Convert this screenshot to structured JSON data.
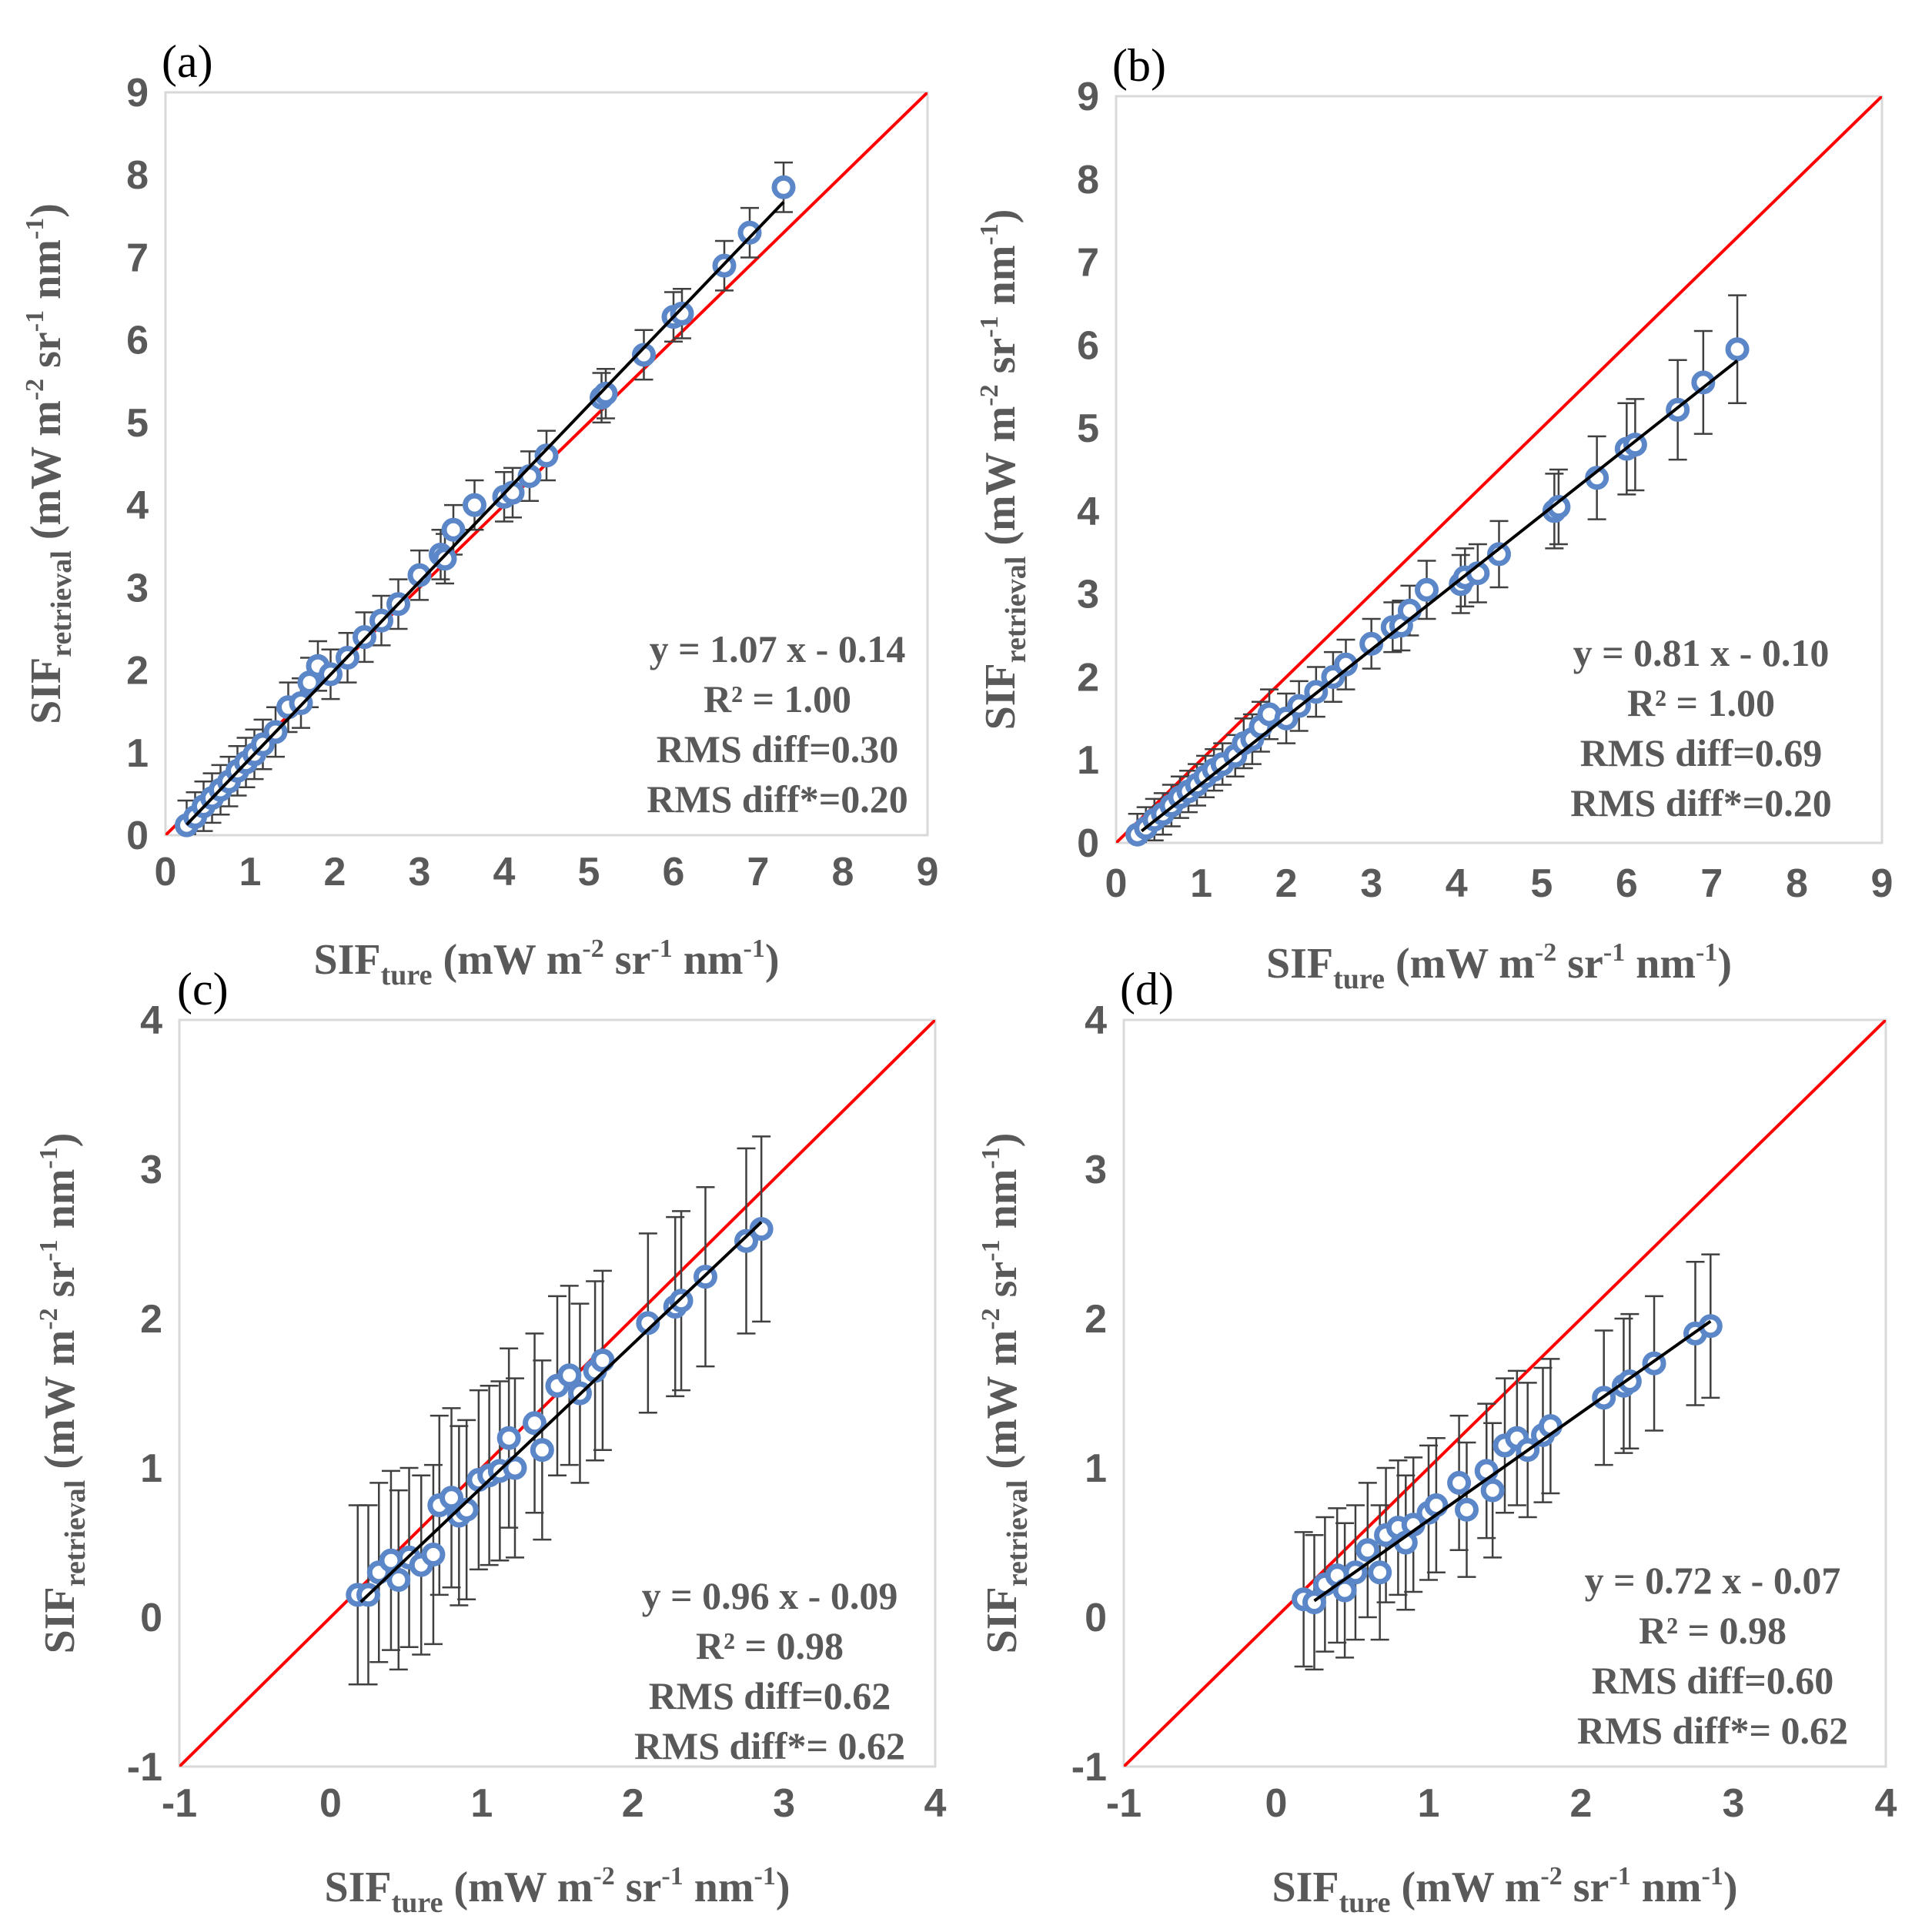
{
  "chart_data": [
    {
      "type": "scatter",
      "panel_label": "(a)",
      "xlim": [
        0,
        9
      ],
      "ylim": [
        0,
        9
      ],
      "xticks": [
        "0",
        "1",
        "2",
        "3",
        "4",
        "5",
        "6",
        "7",
        "8",
        "9"
      ],
      "yticks": [
        "0",
        "1",
        "2",
        "3",
        "4",
        "5",
        "6",
        "7",
        "8",
        "9"
      ],
      "xlabel": {
        "main": "SIF",
        "sub": "ture",
        "units": " (mW m",
        "sup1": "-2",
        "mid1": " sr",
        "sup2": "-1",
        "mid2": " nm",
        "sup3": "-1",
        "end": ")"
      },
      "ylabel": {
        "main": "SIF",
        "sub": "retrieval",
        "units": " (mW m",
        "sup1": "-2",
        "mid1": " sr",
        "sup2": "-1",
        "mid2": " nm",
        "sup3": "-1",
        "end": ")"
      },
      "annotations": [
        "y = 1.07 x - 0.14",
        "R² = 1.00",
        "RMS diff=0.30",
        "RMS diff*=0.20"
      ],
      "fit": {
        "slope": 1.07,
        "intercept": -0.14,
        "x_range": [
          0.25,
          7.3
        ]
      },
      "one_to_one": true,
      "points": [
        {
          "x": 0.25,
          "y": 0.12,
          "err": 0.3
        },
        {
          "x": 0.35,
          "y": 0.22,
          "err": 0.3
        },
        {
          "x": 0.45,
          "y": 0.35,
          "err": 0.3
        },
        {
          "x": 0.55,
          "y": 0.45,
          "err": 0.3
        },
        {
          "x": 0.65,
          "y": 0.55,
          "err": 0.3
        },
        {
          "x": 0.75,
          "y": 0.65,
          "err": 0.3
        },
        {
          "x": 0.85,
          "y": 0.78,
          "err": 0.3
        },
        {
          "x": 0.95,
          "y": 0.88,
          "err": 0.3
        },
        {
          "x": 1.05,
          "y": 0.98,
          "err": 0.3
        },
        {
          "x": 1.15,
          "y": 1.1,
          "err": 0.3
        },
        {
          "x": 1.3,
          "y": 1.25,
          "err": 0.3
        },
        {
          "x": 1.45,
          "y": 1.55,
          "err": 0.3
        },
        {
          "x": 1.6,
          "y": 1.6,
          "err": 0.3
        },
        {
          "x": 1.7,
          "y": 1.85,
          "err": 0.3
        },
        {
          "x": 1.8,
          "y": 2.05,
          "err": 0.3
        },
        {
          "x": 1.95,
          "y": 1.95,
          "err": 0.3
        },
        {
          "x": 2.15,
          "y": 2.15,
          "err": 0.3
        },
        {
          "x": 2.35,
          "y": 2.4,
          "err": 0.3
        },
        {
          "x": 2.55,
          "y": 2.6,
          "err": 0.3
        },
        {
          "x": 2.75,
          "y": 2.8,
          "err": 0.3
        },
        {
          "x": 3.0,
          "y": 3.15,
          "err": 0.3
        },
        {
          "x": 3.25,
          "y": 3.4,
          "err": 0.3
        },
        {
          "x": 3.3,
          "y": 3.35,
          "err": 0.3
        },
        {
          "x": 3.4,
          "y": 3.7,
          "err": 0.3
        },
        {
          "x": 3.65,
          "y": 4.0,
          "err": 0.3
        },
        {
          "x": 4.0,
          "y": 4.1,
          "err": 0.3
        },
        {
          "x": 4.1,
          "y": 4.15,
          "err": 0.3
        },
        {
          "x": 4.3,
          "y": 4.35,
          "err": 0.3
        },
        {
          "x": 4.5,
          "y": 4.6,
          "err": 0.3
        },
        {
          "x": 5.15,
          "y": 5.3,
          "err": 0.3
        },
        {
          "x": 5.2,
          "y": 5.35,
          "err": 0.3
        },
        {
          "x": 5.65,
          "y": 5.82,
          "err": 0.3
        },
        {
          "x": 6.0,
          "y": 6.28,
          "err": 0.3
        },
        {
          "x": 6.1,
          "y": 6.32,
          "err": 0.3
        },
        {
          "x": 6.6,
          "y": 6.9,
          "err": 0.3
        },
        {
          "x": 6.9,
          "y": 7.3,
          "err": 0.3
        },
        {
          "x": 7.3,
          "y": 7.85,
          "err": 0.3
        }
      ]
    },
    {
      "type": "scatter",
      "panel_label": "(b)",
      "xlim": [
        0,
        9
      ],
      "ylim": [
        0,
        9
      ],
      "xticks": [
        "0",
        "1",
        "2",
        "3",
        "4",
        "5",
        "6",
        "7",
        "8",
        "9"
      ],
      "yticks": [
        "0",
        "1",
        "2",
        "3",
        "4",
        "5",
        "6",
        "7",
        "8",
        "9"
      ],
      "xlabel": {
        "main": "SIF",
        "sub": "ture",
        "units": " (mW m",
        "sup1": "-2",
        "mid1": " sr",
        "sup2": "-1",
        "mid2": " nm",
        "sup3": "-1",
        "end": ")"
      },
      "ylabel": {
        "main": "SIF",
        "sub": "retrieval",
        "units": " (mW m",
        "sup1": "-2",
        "mid1": " sr",
        "sup2": "-1",
        "mid2": " nm",
        "sup3": "-1",
        "end": ")"
      },
      "annotations": [
        "y = 0.81 x - 0.10",
        "R² = 1.00",
        "RMS diff=0.69",
        "RMS diff*=0.20"
      ],
      "fit": {
        "slope": 0.81,
        "intercept": -0.1,
        "x_range": [
          0.3,
          7.3
        ]
      },
      "one_to_one": true,
      "points": [
        {
          "x": 0.25,
          "y": 0.1,
          "err": 0.25
        },
        {
          "x": 0.35,
          "y": 0.18,
          "err": 0.25
        },
        {
          "x": 0.45,
          "y": 0.28,
          "err": 0.25
        },
        {
          "x": 0.55,
          "y": 0.35,
          "err": 0.25
        },
        {
          "x": 0.65,
          "y": 0.45,
          "err": 0.25
        },
        {
          "x": 0.75,
          "y": 0.55,
          "err": 0.25
        },
        {
          "x": 0.85,
          "y": 0.62,
          "err": 0.25
        },
        {
          "x": 0.95,
          "y": 0.7,
          "err": 0.25
        },
        {
          "x": 1.05,
          "y": 0.8,
          "err": 0.25
        },
        {
          "x": 1.15,
          "y": 0.88,
          "err": 0.25
        },
        {
          "x": 1.25,
          "y": 0.95,
          "err": 0.25
        },
        {
          "x": 1.4,
          "y": 1.05,
          "err": 0.25
        },
        {
          "x": 1.5,
          "y": 1.2,
          "err": 0.3
        },
        {
          "x": 1.6,
          "y": 1.25,
          "err": 0.3
        },
        {
          "x": 1.7,
          "y": 1.4,
          "err": 0.3
        },
        {
          "x": 1.8,
          "y": 1.55,
          "err": 0.3
        },
        {
          "x": 2.0,
          "y": 1.5,
          "err": 0.3
        },
        {
          "x": 2.15,
          "y": 1.65,
          "err": 0.3
        },
        {
          "x": 2.35,
          "y": 1.82,
          "err": 0.3
        },
        {
          "x": 2.55,
          "y": 2.0,
          "err": 0.3
        },
        {
          "x": 2.7,
          "y": 2.15,
          "err": 0.3
        },
        {
          "x": 3.0,
          "y": 2.4,
          "err": 0.3
        },
        {
          "x": 3.25,
          "y": 2.6,
          "err": 0.3
        },
        {
          "x": 3.35,
          "y": 2.62,
          "err": 0.3
        },
        {
          "x": 3.45,
          "y": 2.8,
          "err": 0.3
        },
        {
          "x": 3.65,
          "y": 3.05,
          "err": 0.35
        },
        {
          "x": 4.05,
          "y": 3.12,
          "err": 0.35
        },
        {
          "x": 4.1,
          "y": 3.2,
          "err": 0.35
        },
        {
          "x": 4.25,
          "y": 3.25,
          "err": 0.35
        },
        {
          "x": 4.5,
          "y": 3.48,
          "err": 0.4
        },
        {
          "x": 5.15,
          "y": 4.0,
          "err": 0.45
        },
        {
          "x": 5.2,
          "y": 4.05,
          "err": 0.45
        },
        {
          "x": 5.65,
          "y": 4.4,
          "err": 0.5
        },
        {
          "x": 6.0,
          "y": 4.75,
          "err": 0.55
        },
        {
          "x": 6.1,
          "y": 4.8,
          "err": 0.55
        },
        {
          "x": 6.6,
          "y": 5.22,
          "err": 0.6
        },
        {
          "x": 6.9,
          "y": 5.55,
          "err": 0.62
        },
        {
          "x": 7.3,
          "y": 5.95,
          "err": 0.65
        }
      ]
    },
    {
      "type": "scatter",
      "panel_label": "(c)",
      "xlim": [
        -1,
        4
      ],
      "ylim": [
        -1,
        4
      ],
      "xticks": [
        "-1",
        "0",
        "1",
        "2",
        "3",
        "4"
      ],
      "yticks": [
        "-1",
        "0",
        "1",
        "2",
        "3",
        "4"
      ],
      "xlabel": {
        "main": "SIF",
        "sub": "ture",
        "units": " (mW m",
        "sup1": "-2",
        "mid1": " sr",
        "sup2": "-1",
        "mid2": " nm",
        "sup3": "-1",
        "end": ")"
      },
      "ylabel": {
        "main": "SIF",
        "sub": "retrieval",
        "units": " (mW m",
        "sup1": "-2",
        "mid1": " sr",
        "sup2": "-1",
        "mid2": " nm",
        "sup3": "-1",
        "end": ")"
      },
      "annotations": [
        "y = 0.96 x - 0.09",
        "R² = 0.98",
        "RMS diff=0.62",
        "RMS diff*= 0.62"
      ],
      "fit": {
        "slope": 0.96,
        "intercept": -0.09,
        "x_range": [
          0.2,
          2.85
        ]
      },
      "one_to_one": true,
      "points": [
        {
          "x": 0.18,
          "y": 0.15,
          "err": 0.6
        },
        {
          "x": 0.25,
          "y": 0.15,
          "err": 0.6
        },
        {
          "x": 0.32,
          "y": 0.3,
          "err": 0.6
        },
        {
          "x": 0.4,
          "y": 0.38,
          "err": 0.6
        },
        {
          "x": 0.45,
          "y": 0.25,
          "err": 0.6
        },
        {
          "x": 0.52,
          "y": 0.4,
          "err": 0.6
        },
        {
          "x": 0.6,
          "y": 0.35,
          "err": 0.6
        },
        {
          "x": 0.68,
          "y": 0.42,
          "err": 0.6
        },
        {
          "x": 0.72,
          "y": 0.75,
          "err": 0.6
        },
        {
          "x": 0.8,
          "y": 0.8,
          "err": 0.6
        },
        {
          "x": 0.85,
          "y": 0.68,
          "err": 0.6
        },
        {
          "x": 0.9,
          "y": 0.72,
          "err": 0.6
        },
        {
          "x": 0.98,
          "y": 0.92,
          "err": 0.6
        },
        {
          "x": 1.05,
          "y": 0.95,
          "err": 0.6
        },
        {
          "x": 1.12,
          "y": 0.98,
          "err": 0.6
        },
        {
          "x": 1.18,
          "y": 1.2,
          "err": 0.6
        },
        {
          "x": 1.22,
          "y": 1.0,
          "err": 0.6
        },
        {
          "x": 1.35,
          "y": 1.3,
          "err": 0.6
        },
        {
          "x": 1.4,
          "y": 1.12,
          "err": 0.6
        },
        {
          "x": 1.5,
          "y": 1.55,
          "err": 0.6
        },
        {
          "x": 1.58,
          "y": 1.62,
          "err": 0.6
        },
        {
          "x": 1.65,
          "y": 1.5,
          "err": 0.6
        },
        {
          "x": 1.75,
          "y": 1.65,
          "err": 0.6
        },
        {
          "x": 1.8,
          "y": 1.72,
          "err": 0.6
        },
        {
          "x": 2.1,
          "y": 1.97,
          "err": 0.6
        },
        {
          "x": 2.28,
          "y": 2.08,
          "err": 0.6
        },
        {
          "x": 2.32,
          "y": 2.12,
          "err": 0.6
        },
        {
          "x": 2.48,
          "y": 2.28,
          "err": 0.6
        },
        {
          "x": 2.75,
          "y": 2.52,
          "err": 0.62
        },
        {
          "x": 2.85,
          "y": 2.6,
          "err": 0.62
        }
      ]
    },
    {
      "type": "scatter",
      "panel_label": "(d)",
      "xlim": [
        -1,
        4
      ],
      "ylim": [
        -1,
        4
      ],
      "xticks": [
        "-1",
        "0",
        "1",
        "2",
        "3",
        "4"
      ],
      "yticks": [
        "-1",
        "0",
        "1",
        "2",
        "3",
        "4"
      ],
      "xlabel": {
        "main": "SIF",
        "sub": "ture",
        "units": " (mW m",
        "sup1": "-2",
        "mid1": " sr",
        "sup2": "-1",
        "mid2": " nm",
        "sup3": "-1",
        "end": ")"
      },
      "ylabel": {
        "main": "SIF",
        "sub": "retrieval",
        "units": " (mW m",
        "sup1": "-2",
        "mid1": " sr",
        "sup2": "-1",
        "mid2": " nm",
        "sup3": "-1",
        "end": ")"
      },
      "annotations": [
        "y = 0.72 x - 0.07",
        "R² = 0.98",
        "RMS diff=0.60",
        "RMS diff*= 0.62"
      ],
      "fit": {
        "slope": 0.72,
        "intercept": -0.07,
        "x_range": [
          0.25,
          2.85
        ]
      },
      "one_to_one": true,
      "points": [
        {
          "x": 0.18,
          "y": 0.12,
          "err": 0.45
        },
        {
          "x": 0.25,
          "y": 0.1,
          "err": 0.45
        },
        {
          "x": 0.32,
          "y": 0.22,
          "err": 0.45
        },
        {
          "x": 0.4,
          "y": 0.28,
          "err": 0.45
        },
        {
          "x": 0.45,
          "y": 0.18,
          "err": 0.45
        },
        {
          "x": 0.52,
          "y": 0.3,
          "err": 0.45
        },
        {
          "x": 0.6,
          "y": 0.45,
          "err": 0.45
        },
        {
          "x": 0.68,
          "y": 0.3,
          "err": 0.45
        },
        {
          "x": 0.72,
          "y": 0.55,
          "err": 0.45
        },
        {
          "x": 0.8,
          "y": 0.6,
          "err": 0.45
        },
        {
          "x": 0.85,
          "y": 0.5,
          "err": 0.45
        },
        {
          "x": 0.9,
          "y": 0.62,
          "err": 0.45
        },
        {
          "x": 1.0,
          "y": 0.7,
          "err": 0.45
        },
        {
          "x": 1.05,
          "y": 0.75,
          "err": 0.45
        },
        {
          "x": 1.2,
          "y": 0.9,
          "err": 0.45
        },
        {
          "x": 1.25,
          "y": 0.72,
          "err": 0.45
        },
        {
          "x": 1.38,
          "y": 0.98,
          "err": 0.45
        },
        {
          "x": 1.42,
          "y": 0.85,
          "err": 0.45
        },
        {
          "x": 1.5,
          "y": 1.15,
          "err": 0.45
        },
        {
          "x": 1.58,
          "y": 1.2,
          "err": 0.45
        },
        {
          "x": 1.65,
          "y": 1.12,
          "err": 0.45
        },
        {
          "x": 1.75,
          "y": 1.22,
          "err": 0.45
        },
        {
          "x": 1.8,
          "y": 1.28,
          "err": 0.45
        },
        {
          "x": 2.15,
          "y": 1.47,
          "err": 0.45
        },
        {
          "x": 2.28,
          "y": 1.55,
          "err": 0.45
        },
        {
          "x": 2.32,
          "y": 1.58,
          "err": 0.45
        },
        {
          "x": 2.48,
          "y": 1.7,
          "err": 0.45
        },
        {
          "x": 2.75,
          "y": 1.9,
          "err": 0.48
        },
        {
          "x": 2.85,
          "y": 1.95,
          "err": 0.48
        }
      ]
    }
  ],
  "colors": {
    "marker": "#5b87c8",
    "fit_line": "#000000",
    "one_to_one_line": "#ff0000",
    "error_bar": "#404040",
    "axis_text": "#595959",
    "frame": "#d9d9d9"
  }
}
